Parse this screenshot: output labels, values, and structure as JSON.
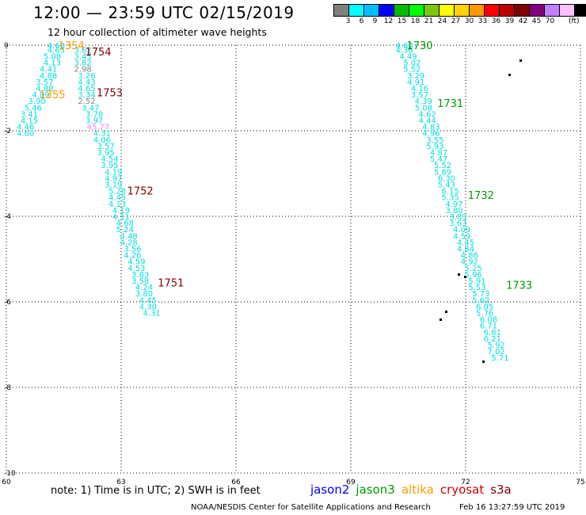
{
  "title": "12:00 — 23:59 UTC 02/15/2019",
  "subtitle": "12 hour collection of altimeter wave heights",
  "legend": {
    "colors": [
      "#808080",
      "#00ffff",
      "#00bfff",
      "#0000ff",
      "#00bb00",
      "#00ff00",
      "#7ac70c",
      "#ffff00",
      "#ffd400",
      "#ff9900",
      "#ff0000",
      "#bb0000",
      "#800000",
      "#800080",
      "#c080ff",
      "#ffc0ff",
      "#000000"
    ],
    "labels": [
      "3",
      "6",
      "9",
      "12",
      "15",
      "18",
      "21",
      "24",
      "27",
      "30",
      "33",
      "36",
      "39",
      "42",
      "45",
      "70"
    ],
    "unit": "(ft)"
  },
  "note": "note: 1) Time is in UTC; 2) SWH is in feet",
  "satellites": [
    {
      "name": "jason2",
      "color": "#0000ff"
    },
    {
      "name": "jason3",
      "color": "#009900"
    },
    {
      "name": "altika",
      "color": "#ff9900"
    },
    {
      "name": "cryosat",
      "color": "#cc0000"
    },
    {
      "name": "s3a",
      "color": "#800000"
    }
  ],
  "credit": "NOAA/NESDIS Center for Satellite Applications and Research",
  "timestamp": "Feb 16 13:27:59 UTC 2019",
  "chart_data": {
    "type": "scatter",
    "title": "12:00 — 23:59 UTC 02/15/2019",
    "xlim": [
      60,
      75
    ],
    "ylim": [
      -10,
      0
    ],
    "xticks": [
      60,
      63,
      66,
      69,
      72,
      75
    ],
    "yticks": [
      0,
      -2,
      -4,
      -6,
      -8,
      -10
    ],
    "grid": "dotted",
    "points": [
      {
        "x": 61.3,
        "y": 0.0,
        "v": "4.60",
        "c": "#00dddd"
      },
      {
        "x": 61.3,
        "y": -0.1,
        "v": "4.65",
        "c": "#00dddd"
      },
      {
        "x": 61.2,
        "y": -0.25,
        "v": "5.08",
        "c": "#00dddd"
      },
      {
        "x": 61.2,
        "y": -0.4,
        "v": "4.13",
        "c": "#00dddd"
      },
      {
        "x": 61.1,
        "y": -0.55,
        "v": "4.41",
        "c": "#00dddd"
      },
      {
        "x": 61.1,
        "y": -0.7,
        "v": "4.88",
        "c": "#00dddd"
      },
      {
        "x": 61.0,
        "y": -0.85,
        "v": "3.57",
        "c": "#00dddd"
      },
      {
        "x": 61.0,
        "y": -1.0,
        "v": "4.88",
        "c": "#00dddd"
      },
      {
        "x": 60.9,
        "y": -1.15,
        "v": "4.09",
        "c": "#00dddd"
      },
      {
        "x": 60.8,
        "y": -1.3,
        "v": "3.90",
        "c": "#00dddd"
      },
      {
        "x": 60.7,
        "y": -1.45,
        "v": "5.46",
        "c": "#00dddd"
      },
      {
        "x": 60.6,
        "y": -1.6,
        "v": "3.41",
        "c": "#00dddd"
      },
      {
        "x": 60.6,
        "y": -1.75,
        "v": "4.15",
        "c": "#00dddd"
      },
      {
        "x": 60.5,
        "y": -1.9,
        "v": "4.46",
        "c": "#00dddd"
      },
      {
        "x": 60.5,
        "y": -2.05,
        "v": "4.60",
        "c": "#00dddd"
      },
      {
        "x": 62.0,
        "y": -0.1,
        "v": "3.62",
        "c": "#00dddd"
      },
      {
        "x": 62.0,
        "y": -0.25,
        "v": "3.43",
        "c": "#00dddd"
      },
      {
        "x": 62.0,
        "y": -0.4,
        "v": "3.82",
        "c": "#00dddd"
      },
      {
        "x": 62.0,
        "y": -0.55,
        "v": "2.98",
        "c": "#808080"
      },
      {
        "x": 62.1,
        "y": -0.7,
        "v": "3.26",
        "c": "#00dddd"
      },
      {
        "x": 62.1,
        "y": -0.85,
        "v": "4.43",
        "c": "#00dddd"
      },
      {
        "x": 62.1,
        "y": -1.0,
        "v": "4.65",
        "c": "#00dddd"
      },
      {
        "x": 62.1,
        "y": -1.15,
        "v": "3.34",
        "c": "#00dddd"
      },
      {
        "x": 62.1,
        "y": -1.3,
        "v": "2.52",
        "c": "#808080"
      },
      {
        "x": 62.2,
        "y": -1.45,
        "v": "3.47",
        "c": "#00dddd"
      },
      {
        "x": 62.3,
        "y": -1.6,
        "v": "3.78",
        "c": "#00dddd"
      },
      {
        "x": 62.3,
        "y": -1.75,
        "v": "3.97",
        "c": "#00dddd"
      },
      {
        "x": 62.4,
        "y": -1.9,
        "v": "45.77",
        "c": "#ff80ff"
      },
      {
        "x": 62.5,
        "y": -2.05,
        "v": "4.31",
        "c": "#00dddd"
      },
      {
        "x": 62.5,
        "y": -2.2,
        "v": "4.06",
        "c": "#00dddd"
      },
      {
        "x": 62.6,
        "y": -2.35,
        "v": "3.57",
        "c": "#00dddd"
      },
      {
        "x": 62.6,
        "y": -2.5,
        "v": "3.95",
        "c": "#00dddd"
      },
      {
        "x": 62.7,
        "y": -2.65,
        "v": "4.54",
        "c": "#00dddd"
      },
      {
        "x": 62.7,
        "y": -2.8,
        "v": "3.95",
        "c": "#00dddd"
      },
      {
        "x": 62.8,
        "y": -2.95,
        "v": "4.19",
        "c": "#00dddd"
      },
      {
        "x": 62.8,
        "y": -3.1,
        "v": "4.97",
        "c": "#00dddd"
      },
      {
        "x": 62.8,
        "y": -3.25,
        "v": "3.19",
        "c": "#00dddd"
      },
      {
        "x": 62.9,
        "y": -3.4,
        "v": "5.28",
        "c": "#00dddd"
      },
      {
        "x": 62.9,
        "y": -3.55,
        "v": "4.45",
        "c": "#00dddd"
      },
      {
        "x": 62.9,
        "y": -3.7,
        "v": "4.13",
        "c": "#00dddd"
      },
      {
        "x": 63.0,
        "y": -3.85,
        "v": "4.19",
        "c": "#00dddd"
      },
      {
        "x": 63.0,
        "y": -4.0,
        "v": "4.11",
        "c": "#00dddd"
      },
      {
        "x": 63.1,
        "y": -4.15,
        "v": "4.68",
        "c": "#00dddd"
      },
      {
        "x": 63.1,
        "y": -4.3,
        "v": "5.24",
        "c": "#00dddd"
      },
      {
        "x": 63.2,
        "y": -4.45,
        "v": "4.48",
        "c": "#00dddd"
      },
      {
        "x": 63.2,
        "y": -4.6,
        "v": "4.28",
        "c": "#00dddd"
      },
      {
        "x": 63.3,
        "y": -4.75,
        "v": "3.56",
        "c": "#00dddd"
      },
      {
        "x": 63.3,
        "y": -4.9,
        "v": "4.26",
        "c": "#00dddd"
      },
      {
        "x": 63.4,
        "y": -5.05,
        "v": "4.59",
        "c": "#00dddd"
      },
      {
        "x": 63.4,
        "y": -5.2,
        "v": "4.53",
        "c": "#00dddd"
      },
      {
        "x": 63.5,
        "y": -5.35,
        "v": "3.83",
        "c": "#00dddd"
      },
      {
        "x": 63.5,
        "y": -5.5,
        "v": "3.58",
        "c": "#00dddd"
      },
      {
        "x": 63.6,
        "y": -5.65,
        "v": "4.24",
        "c": "#00dddd"
      },
      {
        "x": 63.6,
        "y": -5.8,
        "v": "3.80",
        "c": "#00dddd"
      },
      {
        "x": 63.7,
        "y": -5.95,
        "v": "4.45",
        "c": "#00dddd"
      },
      {
        "x": 63.7,
        "y": -6.1,
        "v": "4.30",
        "c": "#00dddd"
      },
      {
        "x": 63.8,
        "y": -6.25,
        "v": "4.31",
        "c": "#00dddd"
      },
      {
        "x": 70.4,
        "y": 0.0,
        "v": "4.60",
        "c": "#00dddd"
      },
      {
        "x": 70.4,
        "y": -0.1,
        "v": "4.36",
        "c": "#00dddd"
      },
      {
        "x": 70.5,
        "y": -0.25,
        "v": "4.49",
        "c": "#00dddd"
      },
      {
        "x": 70.6,
        "y": -0.4,
        "v": "5.02",
        "c": "#00dddd"
      },
      {
        "x": 70.6,
        "y": -0.55,
        "v": "5.52",
        "c": "#00dddd"
      },
      {
        "x": 70.7,
        "y": -0.7,
        "v": "3.29",
        "c": "#00dddd"
      },
      {
        "x": 70.7,
        "y": -0.85,
        "v": "4.91",
        "c": "#00dddd"
      },
      {
        "x": 70.8,
        "y": -1.0,
        "v": "4.16",
        "c": "#00dddd"
      },
      {
        "x": 70.8,
        "y": -1.15,
        "v": "3.57",
        "c": "#00dddd"
      },
      {
        "x": 70.9,
        "y": -1.3,
        "v": "4.39",
        "c": "#00dddd"
      },
      {
        "x": 70.9,
        "y": -1.45,
        "v": "5.08",
        "c": "#00dddd"
      },
      {
        "x": 71.0,
        "y": -1.6,
        "v": "4.62",
        "c": "#00dddd"
      },
      {
        "x": 71.0,
        "y": -1.75,
        "v": "4.44",
        "c": "#00dddd"
      },
      {
        "x": 71.1,
        "y": -1.9,
        "v": "4.83",
        "c": "#00dddd"
      },
      {
        "x": 71.1,
        "y": -2.05,
        "v": "4.96",
        "c": "#00dddd"
      },
      {
        "x": 71.2,
        "y": -2.2,
        "v": "3.55",
        "c": "#00dddd"
      },
      {
        "x": 71.2,
        "y": -2.35,
        "v": "5.93",
        "c": "#00dddd"
      },
      {
        "x": 71.3,
        "y": -2.5,
        "v": "4.87",
        "c": "#00dddd"
      },
      {
        "x": 71.3,
        "y": -2.65,
        "v": "5.47",
        "c": "#00dddd"
      },
      {
        "x": 71.4,
        "y": -2.8,
        "v": "5.52",
        "c": "#00dddd"
      },
      {
        "x": 71.4,
        "y": -2.95,
        "v": "5.89",
        "c": "#00dddd"
      },
      {
        "x": 71.5,
        "y": -3.1,
        "v": "6.30",
        "c": "#00dddd"
      },
      {
        "x": 71.5,
        "y": -3.25,
        "v": "5.43",
        "c": "#00dddd"
      },
      {
        "x": 71.6,
        "y": -3.4,
        "v": "6.15",
        "c": "#00dddd"
      },
      {
        "x": 71.6,
        "y": -3.55,
        "v": "5.35",
        "c": "#00dddd"
      },
      {
        "x": 71.7,
        "y": -3.7,
        "v": "4.97",
        "c": "#00dddd"
      },
      {
        "x": 71.7,
        "y": -3.85,
        "v": "3.80",
        "c": "#00dddd"
      },
      {
        "x": 71.8,
        "y": -4.0,
        "v": "3.89",
        "c": "#00dddd"
      },
      {
        "x": 71.8,
        "y": -4.15,
        "v": "3.63",
        "c": "#00dddd"
      },
      {
        "x": 71.9,
        "y": -4.3,
        "v": "4.09",
        "c": "#00dddd"
      },
      {
        "x": 71.9,
        "y": -4.45,
        "v": "4.59",
        "c": "#00dddd"
      },
      {
        "x": 72.0,
        "y": -4.6,
        "v": "4.45",
        "c": "#00dddd"
      },
      {
        "x": 72.0,
        "y": -4.75,
        "v": "4.84",
        "c": "#00dddd"
      },
      {
        "x": 72.1,
        "y": -4.9,
        "v": "4.86",
        "c": "#00dddd"
      },
      {
        "x": 72.1,
        "y": -5.05,
        "v": "4.92",
        "c": "#00dddd"
      },
      {
        "x": 72.2,
        "y": -5.2,
        "v": "5.25",
        "c": "#00dddd"
      },
      {
        "x": 72.2,
        "y": -5.35,
        "v": "5.96",
        "c": "#00dddd"
      },
      {
        "x": 72.3,
        "y": -5.5,
        "v": "5.91",
        "c": "#00dddd"
      },
      {
        "x": 72.3,
        "y": -5.65,
        "v": "5.53",
        "c": "#00dddd"
      },
      {
        "x": 72.4,
        "y": -5.8,
        "v": "5.73",
        "c": "#00dddd"
      },
      {
        "x": 72.4,
        "y": -5.95,
        "v": "5.62",
        "c": "#00dddd"
      },
      {
        "x": 72.5,
        "y": -6.1,
        "v": "6.05",
        "c": "#00dddd"
      },
      {
        "x": 72.5,
        "y": -6.25,
        "v": "5.76",
        "c": "#00dddd"
      },
      {
        "x": 72.6,
        "y": -6.4,
        "v": "6.08",
        "c": "#00dddd"
      },
      {
        "x": 72.6,
        "y": -6.55,
        "v": "6.71",
        "c": "#00dddd"
      },
      {
        "x": 72.7,
        "y": -6.7,
        "v": "6.81",
        "c": "#00dddd"
      },
      {
        "x": 72.7,
        "y": -6.85,
        "v": "6.21",
        "c": "#00dddd"
      },
      {
        "x": 72.8,
        "y": -7.0,
        "v": "5.92",
        "c": "#00dddd"
      },
      {
        "x": 72.8,
        "y": -7.15,
        "v": "7.02",
        "c": "#00dddd"
      },
      {
        "x": 72.9,
        "y": -7.3,
        "v": "5.71",
        "c": "#00dddd"
      }
    ],
    "time_labels": [
      {
        "x": 61.7,
        "y": 0.0,
        "t": "1354",
        "c": "#ff9900"
      },
      {
        "x": 62.4,
        "y": -0.15,
        "t": "1754",
        "c": "#800000"
      },
      {
        "x": 61.2,
        "y": -1.15,
        "t": "1355",
        "c": "#ff9900"
      },
      {
        "x": 62.7,
        "y": -1.1,
        "t": "1753",
        "c": "#800000"
      },
      {
        "x": 63.5,
        "y": -3.4,
        "t": "1752",
        "c": "#800000"
      },
      {
        "x": 64.3,
        "y": -5.55,
        "t": "1751",
        "c": "#800000"
      },
      {
        "x": 70.8,
        "y": 0.0,
        "t": "1730",
        "c": "#009900"
      },
      {
        "x": 71.6,
        "y": -1.35,
        "t": "1731",
        "c": "#009900"
      },
      {
        "x": 72.4,
        "y": -3.5,
        "t": "1732",
        "c": "#009900"
      },
      {
        "x": 73.4,
        "y": -5.6,
        "t": "1733",
        "c": "#009900"
      }
    ]
  }
}
